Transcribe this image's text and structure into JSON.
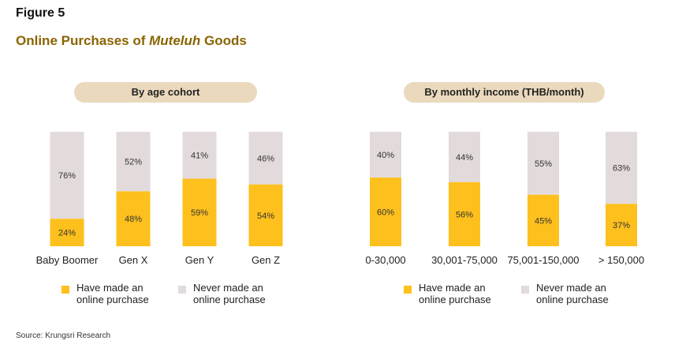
{
  "figure_label": "Figure 5",
  "title_prefix": "Online Purchases of ",
  "title_italic": "Muteluh",
  "title_suffix": " Goods",
  "colors": {
    "made": "#fec01c",
    "never": "#e3dbdb",
    "pill": "#ead9bd",
    "title": "#8a6400"
  },
  "legend": {
    "made": "Have made an online purchase",
    "never": "Never made an online purchase"
  },
  "source": "Source: Krungsri Research",
  "chart_data": [
    {
      "type": "bar",
      "stacked": true,
      "title": "By age cohort",
      "categories": [
        "Baby Boomer",
        "Gen X",
        "Gen Y",
        "Gen Z"
      ],
      "series": [
        {
          "name": "Have made an online purchase",
          "values": [
            24,
            48,
            59,
            54
          ]
        },
        {
          "name": "Never made an online purchase",
          "values": [
            76,
            52,
            41,
            46
          ]
        }
      ],
      "ylim": [
        0,
        100
      ],
      "unit": "%",
      "grid": false,
      "legend_position": "bottom"
    },
    {
      "type": "bar",
      "stacked": true,
      "title": "By monthly income (THB/month)",
      "categories": [
        "0-30,000",
        "30,001-75,000",
        "75,001-150,000",
        "> 150,000"
      ],
      "series": [
        {
          "name": "Have made an online purchase",
          "values": [
            60,
            56,
            45,
            37
          ]
        },
        {
          "name": "Never made an online purchase",
          "values": [
            40,
            44,
            55,
            63
          ]
        }
      ],
      "ylim": [
        0,
        100
      ],
      "unit": "%",
      "grid": false,
      "legend_position": "bottom"
    }
  ]
}
